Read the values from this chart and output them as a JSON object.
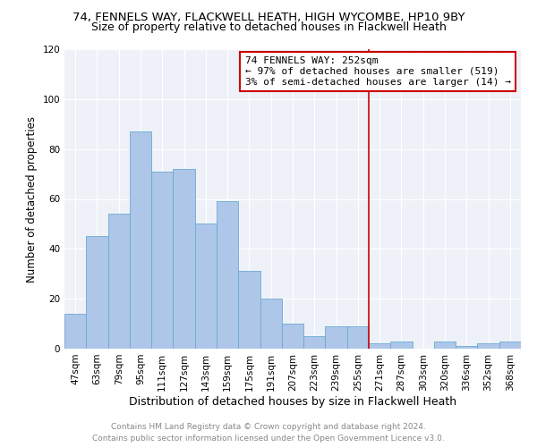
{
  "title": "74, FENNELS WAY, FLACKWELL HEATH, HIGH WYCOMBE, HP10 9BY",
  "subtitle": "Size of property relative to detached houses in Flackwell Heath",
  "xlabel": "Distribution of detached houses by size in Flackwell Heath",
  "ylabel": "Number of detached properties",
  "categories": [
    "47sqm",
    "63sqm",
    "79sqm",
    "95sqm",
    "111sqm",
    "127sqm",
    "143sqm",
    "159sqm",
    "175sqm",
    "191sqm",
    "207sqm",
    "223sqm",
    "239sqm",
    "255sqm",
    "271sqm",
    "287sqm",
    "303sqm",
    "320sqm",
    "336sqm",
    "352sqm",
    "368sqm"
  ],
  "values": [
    14,
    45,
    54,
    87,
    71,
    72,
    50,
    59,
    31,
    20,
    10,
    5,
    9,
    9,
    2,
    3,
    0,
    3,
    1,
    2,
    3
  ],
  "bar_color": "#aec6e8",
  "bar_edge_color": "#6aaad4",
  "vline_x": 13.5,
  "vline_color": "#cc0000",
  "annotation_text": "74 FENNELS WAY: 252sqm\n← 97% of detached houses are smaller (519)\n3% of semi-detached houses are larger (14) →",
  "annotation_box_color": "white",
  "annotation_box_edge_color": "#cc0000",
  "ylim": [
    0,
    120
  ],
  "yticks": [
    0,
    20,
    40,
    60,
    80,
    100,
    120
  ],
  "background_color": "#eef2f8",
  "grid_color": "#ffffff",
  "footer": "Contains HM Land Registry data © Crown copyright and database right 2024.\nContains public sector information licensed under the Open Government Licence v3.0.",
  "title_fontsize": 9.5,
  "subtitle_fontsize": 9,
  "xlabel_fontsize": 9,
  "ylabel_fontsize": 8.5,
  "tick_fontsize": 7.5,
  "footer_fontsize": 6.5,
  "annotation_fontsize": 8
}
